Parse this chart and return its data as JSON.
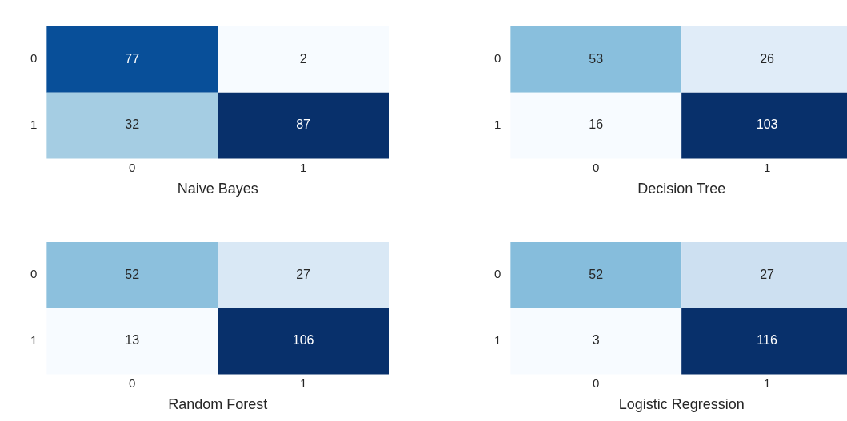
{
  "chart_data": [
    {
      "type": "heatmap",
      "xlabel": "Naive Bayes",
      "categories": [
        "0",
        "1"
      ],
      "y_categories": [
        "0",
        "1"
      ],
      "cells": [
        [
          77,
          2
        ],
        [
          32,
          87
        ]
      ],
      "data_labels": true
    },
    {
      "type": "heatmap",
      "xlabel": "Decision Tree",
      "categories": [
        "0",
        "1"
      ],
      "y_categories": [
        "0",
        "1"
      ],
      "cells": [
        [
          53,
          26
        ],
        [
          16,
          103
        ]
      ],
      "data_labels": true
    },
    {
      "type": "heatmap",
      "xlabel": "Random Forest",
      "categories": [
        "0",
        "1"
      ],
      "y_categories": [
        "0",
        "1"
      ],
      "cells": [
        [
          52,
          27
        ],
        [
          13,
          106
        ]
      ],
      "data_labels": true
    },
    {
      "type": "heatmap",
      "xlabel": "Logistic Regression",
      "categories": [
        "0",
        "1"
      ],
      "y_categories": [
        "0",
        "1"
      ],
      "cells": [
        [
          52,
          27
        ],
        [
          3,
          116
        ]
      ],
      "data_labels": true
    }
  ]
}
